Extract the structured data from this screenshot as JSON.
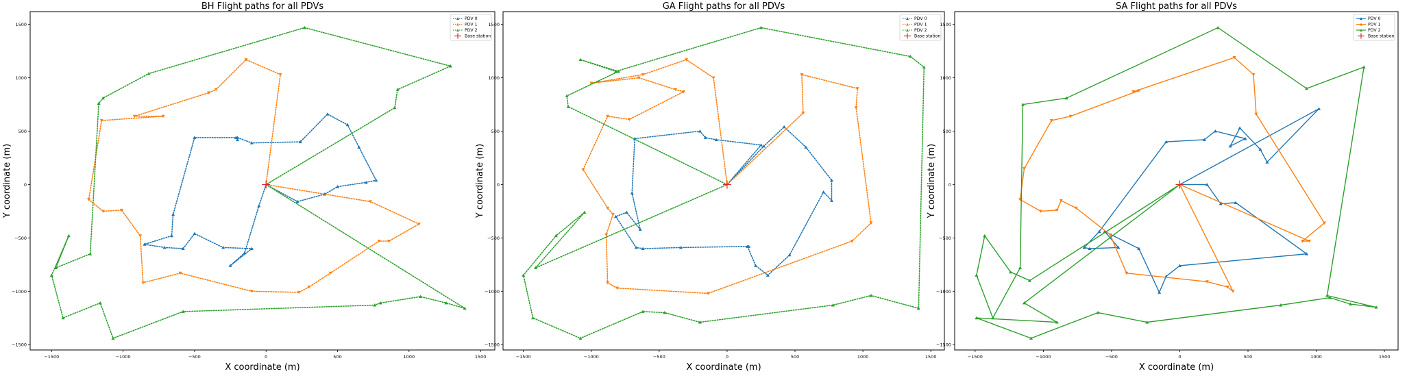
{
  "colors": {
    "pdv0": "#1f77b4",
    "pdv1": "#ff7f0e",
    "pdv2": "#2ca02c",
    "base": "#d62728",
    "axis": "#000000"
  },
  "chart_data": [
    {
      "type": "line",
      "title": "BH Flight paths for all PDVs",
      "xlabel": "X coordinate (m)",
      "ylabel": "Y coordinate (m)",
      "line_style": "dotted",
      "xlim": [
        -1650,
        1600
      ],
      "ylim": [
        -1550,
        1620
      ],
      "xticks": [
        -1500,
        -1000,
        -500,
        0,
        500,
        1000,
        1500
      ],
      "yticks": [
        -1500,
        -1000,
        -500,
        0,
        500,
        1000,
        1500
      ],
      "legend_position": "top-right",
      "series": [
        {
          "name": "PDV 0",
          "color": "#1f77b4",
          "x": [
            0,
            220,
            410,
            500,
            700,
            770,
            650,
            570,
            430,
            240,
            -100,
            -200,
            -200,
            -210,
            -500,
            -650,
            -660,
            -850,
            -710,
            -580,
            -500,
            -300,
            -100,
            -250,
            -150,
            -50,
            0
          ],
          "y": [
            0,
            -160,
            -90,
            -20,
            20,
            40,
            350,
            560,
            660,
            400,
            390,
            440,
            420,
            440,
            440,
            -280,
            -480,
            -560,
            -590,
            -600,
            -460,
            -590,
            -600,
            -760,
            -640,
            -200,
            0
          ]
        },
        {
          "name": "PDV 1",
          "color": "#ff7f0e",
          "x": [
            0,
            730,
            1070,
            860,
            790,
            450,
            300,
            230,
            -100,
            -600,
            -860,
            -880,
            -1010,
            -1140,
            -1240,
            -1150,
            -720,
            -920,
            -400,
            -350,
            -140,
            100,
            0
          ],
          "y": [
            0,
            -160,
            -370,
            -530,
            -530,
            -830,
            -960,
            -1010,
            -1000,
            -830,
            -920,
            -480,
            -240,
            -250,
            -140,
            600,
            640,
            640,
            860,
            890,
            1170,
            1030,
            0
          ]
        },
        {
          "name": "PDV 2",
          "color": "#2ca02c",
          "x": [
            0,
            1390,
            1260,
            1080,
            800,
            760,
            -580,
            -1070,
            -1160,
            -1420,
            -1500,
            -1380,
            -1470,
            -1230,
            -1170,
            -1140,
            -820,
            270,
            1290,
            920,
            900,
            0
          ],
          "y": [
            0,
            -1160,
            -1110,
            -1050,
            -1110,
            -1130,
            -1190,
            -1440,
            -1110,
            -1250,
            -850,
            -480,
            -780,
            -650,
            760,
            810,
            1040,
            1470,
            1110,
            890,
            720,
            0
          ]
        }
      ],
      "base_station": {
        "name": "Base station",
        "x": 0,
        "y": 0
      }
    },
    {
      "type": "line",
      "title": "GA Flight paths for all PDVs",
      "xlabel": "X coordinate (m)",
      "ylabel": "Y coordinate (m)",
      "line_style": "dotted",
      "xlim": [
        -1650,
        1600
      ],
      "ylim": [
        -1550,
        1620
      ],
      "xticks": [
        -1500,
        -1000,
        -500,
        0,
        500,
        1000,
        1500
      ],
      "yticks": [
        -1500,
        -1000,
        -500,
        0,
        500,
        1000,
        1500
      ],
      "legend_position": "top-right",
      "series": [
        {
          "name": "PDV 0",
          "color": "#1f77b4",
          "x": [
            0,
            270,
            420,
            580,
            770,
            770,
            710,
            460,
            300,
            210,
            150,
            160,
            -340,
            -620,
            -670,
            -820,
            -740,
            -640,
            -700,
            -680,
            -200,
            -160,
            -80,
            250,
            0
          ],
          "y": [
            0,
            360,
            540,
            350,
            40,
            -150,
            -70,
            -660,
            -850,
            -760,
            -580,
            -580,
            -590,
            -600,
            -590,
            -300,
            -260,
            -420,
            -80,
            430,
            500,
            440,
            420,
            370,
            0
          ]
        },
        {
          "name": "PDV 1",
          "color": "#ff7f0e",
          "x": [
            0,
            560,
            550,
            960,
            950,
            1060,
            920,
            920,
            -140,
            -810,
            -880,
            -890,
            -840,
            -880,
            -1060,
            -880,
            -720,
            -320,
            -380,
            -650,
            -1000,
            -950,
            -620,
            -300,
            -100,
            0
          ],
          "y": [
            0,
            670,
            1030,
            900,
            720,
            -360,
            -530,
            -530,
            -1020,
            -970,
            -920,
            -470,
            -280,
            -220,
            140,
            640,
            610,
            870,
            890,
            1000,
            950,
            960,
            1030,
            1170,
            1000,
            0
          ]
        },
        {
          "name": "PDV 2",
          "color": "#2ca02c",
          "x": [
            0,
            -1170,
            -1180,
            -800,
            -1080,
            -820,
            250,
            1350,
            1450,
            1410,
            1060,
            780,
            -200,
            -460,
            -620,
            -1080,
            -1430,
            -1500,
            -1260,
            -1050,
            -1410,
            0
          ],
          "y": [
            0,
            730,
            830,
            1060,
            1170,
            1060,
            1470,
            1200,
            1100,
            -1160,
            -1040,
            -1130,
            -1290,
            -1200,
            -1190,
            -1440,
            -1250,
            -850,
            -480,
            -260,
            -780,
            0
          ]
        }
      ],
      "base_station": {
        "name": "Base station",
        "x": 0,
        "y": 0
      }
    },
    {
      "type": "line",
      "title": "SA Flight paths for all PDVs",
      "xlabel": "X coordinate (m)",
      "ylabel": "Y coordinate (m)",
      "line_style": "solid",
      "xlim": [
        -1650,
        1600
      ],
      "ylim": [
        -1550,
        1620
      ],
      "xticks": [
        -1500,
        -1000,
        -500,
        0,
        500,
        1000,
        1500
      ],
      "yticks": [
        -1500,
        -1000,
        -500,
        0,
        500,
        1000,
        1500
      ],
      "legend_position": "top-right",
      "series": [
        {
          "name": "PDV 0",
          "color": "#1f77b4",
          "x": [
            0,
            1020,
            640,
            590,
            440,
            370,
            480,
            260,
            180,
            -100,
            -590,
            -700,
            -700,
            -660,
            -450,
            -550,
            -300,
            -150,
            -100,
            0,
            930,
            410,
            300,
            200,
            0
          ],
          "y": [
            0,
            710,
            210,
            330,
            530,
            360,
            430,
            500,
            420,
            400,
            -440,
            -590,
            -590,
            -600,
            -590,
            -440,
            -600,
            -1010,
            -860,
            -760,
            -650,
            -170,
            -180,
            0,
            0
          ]
        },
        {
          "name": "PDV 1",
          "color": "#ff7f0e",
          "x": [
            0,
            390,
            350,
            200,
            -390,
            -510,
            -760,
            -870,
            -900,
            -1020,
            -1170,
            -1140,
            -940,
            -800,
            -300,
            -340,
            400,
            540,
            560,
            1060,
            900,
            950,
            0
          ],
          "y": [
            0,
            -1000,
            -960,
            -910,
            -830,
            -470,
            -220,
            -150,
            -240,
            -250,
            -140,
            150,
            600,
            640,
            880,
            870,
            1190,
            1030,
            660,
            -360,
            -530,
            -530,
            0
          ]
        },
        {
          "name": "PDV 2",
          "color": "#2ca02c",
          "x": [
            0,
            -1100,
            -1240,
            -1430,
            -1490,
            -1370,
            -1170,
            -1150,
            -830,
            280,
            930,
            1350,
            1080,
            1440,
            1250,
            1100,
            740,
            -240,
            -600,
            -1090,
            -1490,
            -900,
            -1140,
            0
          ],
          "y": [
            0,
            -900,
            -820,
            -480,
            -850,
            -1250,
            -780,
            750,
            810,
            1470,
            900,
            1100,
            -1040,
            -1150,
            -1120,
            -1060,
            -1130,
            -1290,
            -1200,
            -1440,
            -1250,
            -1290,
            -1110,
            0
          ]
        }
      ],
      "base_station": {
        "name": "Base station",
        "x": 0,
        "y": 0
      }
    }
  ]
}
